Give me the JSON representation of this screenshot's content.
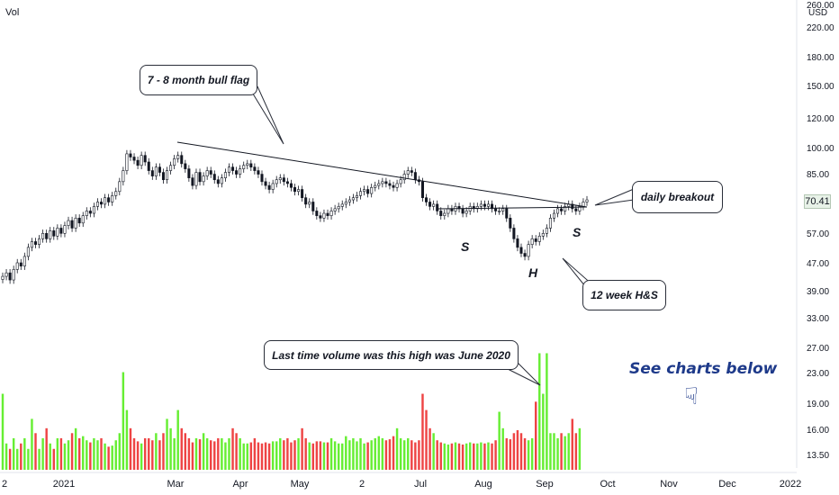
{
  "header": {
    "volume_label": "Vol"
  },
  "price_axis": {
    "currency": "USD",
    "ticks": [
      "260.00",
      "220.00",
      "180.00",
      "150.00",
      "120.00",
      "100.00",
      "85.00",
      "70.41",
      "57.00",
      "47.00",
      "39.00",
      "33.00",
      "27.00",
      "23.00",
      "19.00",
      "16.00",
      "13.50"
    ],
    "last_price": "70.41"
  },
  "time_axis": {
    "labels": [
      "2",
      "2021",
      "Mar",
      "Apr",
      "May",
      "2",
      "Jul",
      "Aug",
      "Sep",
      "Oct",
      "Nov",
      "Dec",
      "2022"
    ]
  },
  "annotations": {
    "flag": "7 - 8 month bull flag",
    "breakout": "daily breakout",
    "hs": "12 week H&S",
    "volume_note": "Last time volume was this high was June 2020",
    "see_charts": "See charts below",
    "s_left": "S",
    "s_right": "S",
    "head": "H"
  },
  "colors": {
    "up": "#26a69a",
    "down": "#ef5350",
    "vol_up": "#66ee33",
    "vol_down": "#ee4444",
    "line": "#131722",
    "accent": "#1e3a8a"
  },
  "icons": {
    "hand": "pointing-down-hand-icon"
  },
  "chart_data": {
    "type": "candlestick",
    "title": "",
    "scale": "log",
    "y_range": [
      13.5,
      260
    ],
    "x_labels": [
      "2",
      "2021",
      "Mar",
      "Apr",
      "May",
      "2",
      "Jul",
      "Aug",
      "Sep",
      "Oct",
      "Nov",
      "Dec",
      "2022"
    ],
    "close": [
      43,
      44,
      42,
      45,
      47,
      46,
      49,
      52,
      54,
      53,
      55,
      57,
      55,
      58,
      56,
      59,
      57,
      60,
      62,
      59,
      63,
      61,
      64,
      66,
      65,
      68,
      70,
      69,
      72,
      70,
      73,
      75,
      80,
      86,
      96,
      94,
      92,
      89,
      95,
      91,
      86,
      83,
      88,
      85,
      81,
      86,
      89,
      93,
      95,
      90,
      87,
      82,
      78,
      85,
      80,
      83,
      86,
      84,
      81,
      79,
      82,
      85,
      88,
      86,
      84,
      87,
      89,
      90,
      88,
      86,
      84,
      80,
      78,
      76,
      79,
      81,
      82,
      80,
      79,
      77,
      75,
      76,
      72,
      69,
      70,
      66,
      64,
      63,
      65,
      64,
      66,
      67,
      68,
      69,
      70,
      71,
      72,
      73,
      75,
      76,
      74,
      77,
      78,
      79,
      80,
      79,
      78,
      77,
      79,
      81,
      84,
      86,
      85,
      81,
      80,
      72,
      70,
      68,
      69,
      66,
      64,
      65,
      67,
      66,
      68,
      67,
      65,
      66,
      68,
      67,
      68,
      69,
      68,
      69,
      67,
      66,
      66,
      67,
      63,
      59,
      55,
      52,
      50,
      49,
      53,
      55,
      54,
      56,
      57,
      59,
      63,
      65,
      67,
      66,
      68,
      69,
      67,
      66,
      68,
      70,
      71
    ],
    "volume_millions": [
      20,
      14.5,
      14,
      15,
      14,
      14.5,
      15,
      14,
      17,
      15.5,
      14,
      15,
      16,
      14.5,
      14,
      15,
      15,
      14.5,
      14.8,
      15.5,
      16,
      15,
      15.2,
      14.8,
      14.6,
      15,
      14.8,
      15,
      14.5,
      14.2,
      14.3,
      14.8,
      15.5,
      23,
      18,
      16,
      15,
      14.7,
      14.5,
      15,
      15,
      14.8,
      15.5,
      14.8,
      15.5,
      17,
      16,
      15,
      18,
      16,
      15.5,
      15,
      14.6,
      15,
      14.9,
      15.5,
      15,
      14.8,
      14.7,
      15,
      15,
      14.6,
      15,
      16,
      15.5,
      15,
      14.5,
      14.5,
      14.6,
      15,
      14.6,
      14.5,
      14.6,
      14.5,
      14.7,
      14.7,
      15,
      14.8,
      15,
      14.6,
      14.8,
      15,
      16,
      15,
      14.6,
      14.5,
      14.7,
      14.7,
      14.6,
      14.6,
      15,
      14.7,
      14.5,
      14.5,
      15.2,
      14.8,
      15,
      14.7,
      15,
      14.5,
      14.6,
      14.8,
      15,
      15.2,
      15,
      14.8,
      14.9,
      15.2,
      16,
      15,
      14.8,
      15,
      14.8,
      14.6,
      14.8,
      20,
      18,
      16,
      15.5,
      14.8,
      14.6,
      14.5,
      14.4,
      14.5,
      14.6,
      14.5,
      14.4,
      14.5,
      14.6,
      14.5,
      14.5,
      14.6,
      14.5,
      14.6,
      14.5,
      14.8,
      17.8,
      16,
      15,
      14.9,
      15.5,
      15.8,
      15.5,
      15,
      14.8,
      15,
      19,
      26,
      20,
      26,
      15.5,
      15.5,
      15,
      15.5,
      15.2,
      15.5,
      17,
      15.5,
      16
    ]
  }
}
